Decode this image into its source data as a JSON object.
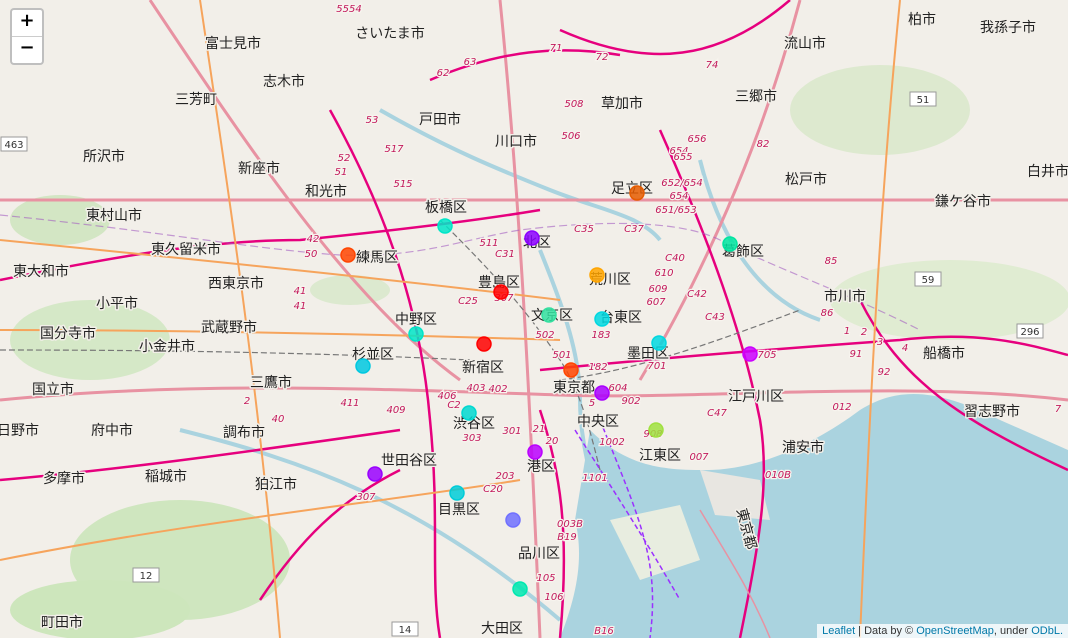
{
  "controls": {
    "zoom_in": "+",
    "zoom_out": "−"
  },
  "attribution": {
    "leaflet": "Leaflet",
    "sep": " | Data by © ",
    "osm": "OpenStreetMap",
    "under": ", under ",
    "odbl": "ODbL."
  },
  "places": [
    {
      "name": "さいたま市"
    },
    {
      "name": "富士見市"
    },
    {
      "name": "志木市"
    },
    {
      "name": "三芳町"
    },
    {
      "name": "戸田市"
    },
    {
      "name": "川口市"
    },
    {
      "name": "草加市"
    },
    {
      "name": "三郷市"
    },
    {
      "name": "流山市"
    },
    {
      "name": "柏市"
    },
    {
      "name": "我孫子市"
    },
    {
      "name": "所沢市"
    },
    {
      "name": "新座市"
    },
    {
      "name": "和光市"
    },
    {
      "name": "板橋区"
    },
    {
      "name": "足立区"
    },
    {
      "name": "松戸市"
    },
    {
      "name": "白井市"
    },
    {
      "name": "鎌ケ谷市"
    },
    {
      "name": "東村山市"
    },
    {
      "name": "東久留米市"
    },
    {
      "name": "練馬区"
    },
    {
      "name": "北区"
    },
    {
      "name": "葛飾区"
    },
    {
      "name": "東大和市"
    },
    {
      "name": "西東京市"
    },
    {
      "name": "豊島区"
    },
    {
      "name": "荒川区"
    },
    {
      "name": "小平市"
    },
    {
      "name": "市川市"
    },
    {
      "name": "国分寺市"
    },
    {
      "name": "武蔵野市"
    },
    {
      "name": "中野区"
    },
    {
      "name": "文京区"
    },
    {
      "name": "台東区"
    },
    {
      "name": "小金井市"
    },
    {
      "name": "杉並区"
    },
    {
      "name": "新宿区"
    },
    {
      "name": "墨田区"
    },
    {
      "name": "船橋市"
    },
    {
      "name": "国立市"
    },
    {
      "name": "三鷹市"
    },
    {
      "name": "東京都"
    },
    {
      "name": "江戸川区"
    },
    {
      "name": "習志野市"
    },
    {
      "name": "日野市"
    },
    {
      "name": "府中市"
    },
    {
      "name": "調布市"
    },
    {
      "name": "渋谷区"
    },
    {
      "name": "中央区"
    },
    {
      "name": "浦安市"
    },
    {
      "name": "世田谷区"
    },
    {
      "name": "江東区"
    },
    {
      "name": "多摩市"
    },
    {
      "name": "稲城市"
    },
    {
      "name": "狛江市"
    },
    {
      "name": "港区"
    },
    {
      "name": "目黒区"
    },
    {
      "name": "品川区"
    },
    {
      "name": "町田市"
    },
    {
      "name": "大田区"
    },
    {
      "name": "東京都"
    }
  ],
  "routes": [
    "5554",
    "71",
    "72",
    "74",
    "63",
    "62",
    "508",
    "506",
    "53",
    "517",
    "52",
    "51",
    "515",
    "656",
    "654",
    "655",
    "82",
    "652/654",
    "654",
    "651/653",
    "C35",
    "C37",
    "511",
    "C31",
    "42",
    "50",
    "41",
    "41",
    "307",
    "C25",
    "502",
    "183",
    "610",
    "C40",
    "609",
    "607",
    "C42",
    "C43",
    "86",
    "85",
    "1",
    "2",
    "3",
    "91",
    "4",
    "92",
    "501",
    "182",
    "604",
    "902",
    "701",
    "705",
    "403",
    "402",
    "406",
    "C2",
    "301",
    "21",
    "303",
    "1002",
    "908",
    "C47",
    "012",
    "007",
    "411",
    "409",
    "2",
    "40",
    "20",
    "203",
    "C20",
    "1101",
    "010B",
    "307",
    "003B",
    "B19",
    "105",
    "106",
    "B16",
    "5",
    "7"
  ],
  "shields": [
    "463",
    "51",
    "59",
    "296",
    "12",
    "14"
  ],
  "markers": [
    {
      "id": "m1",
      "color": "#ff4500"
    },
    {
      "id": "m2",
      "color": "#00e5c8"
    },
    {
      "id": "m3",
      "color": "#8b00ff"
    },
    {
      "id": "m4",
      "color": "#e65c00"
    },
    {
      "id": "m5",
      "color": "#00e5a0"
    },
    {
      "id": "m6",
      "color": "#ff0000"
    },
    {
      "id": "m7",
      "color": "#ffa500"
    },
    {
      "id": "m8",
      "color": "#00e5c8"
    },
    {
      "id": "m9",
      "color": "#00d8e0"
    },
    {
      "id": "m10",
      "color": "#33e0a0"
    },
    {
      "id": "m11",
      "color": "#ff0000"
    },
    {
      "id": "m12",
      "color": "#00d8e0"
    },
    {
      "id": "m13",
      "color": "#00c8e0"
    },
    {
      "id": "m14",
      "color": "#cc00ff"
    },
    {
      "id": "m15",
      "color": "#ff4500"
    },
    {
      "id": "m16",
      "color": "#aa00ff"
    },
    {
      "id": "m17",
      "color": "#00d8d0"
    },
    {
      "id": "m18",
      "color": "#a0e040"
    },
    {
      "id": "m19",
      "color": "#bb00ff"
    },
    {
      "id": "m20",
      "color": "#9a00ff"
    },
    {
      "id": "m21",
      "color": "#00ccd8"
    },
    {
      "id": "m22",
      "color": "#7070ff"
    },
    {
      "id": "m23",
      "color": "#00e8b0"
    }
  ]
}
